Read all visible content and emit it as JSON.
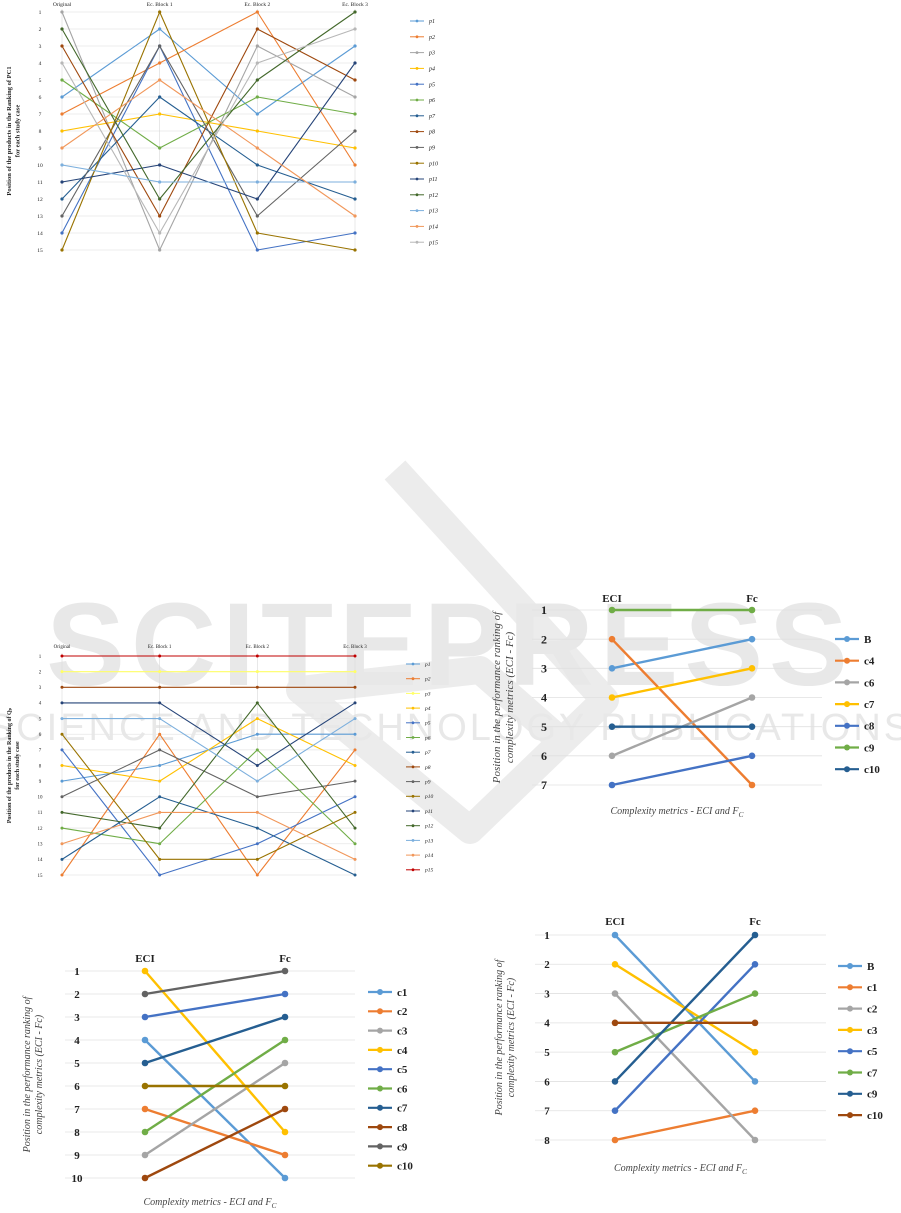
{
  "chart_data": [
    {
      "type": "line",
      "ylabel": "Position of the products in the Ranking of PC1 for each study case",
      "categories": [
        "Original",
        "Ec. Block 1",
        "Ec. Block 2",
        "Ec. Block 3"
      ],
      "yticks": [
        "1",
        "2",
        "3",
        "4",
        "5",
        "6",
        "7",
        "8",
        "9",
        "10",
        "11",
        "12",
        "13",
        "14",
        "15"
      ],
      "ylim": [
        1,
        15
      ],
      "y_inverted": true,
      "legend_position": "right",
      "series": [
        {
          "name": "p1",
          "color": "#5b9bd5",
          "values": [
            6,
            2,
            7,
            3
          ]
        },
        {
          "name": "p2",
          "color": "#ed7d31",
          "values": [
            7,
            4,
            1,
            10
          ]
        },
        {
          "name": "p3",
          "color": "#a5a5a5",
          "values": [
            1,
            15,
            3,
            6
          ]
        },
        {
          "name": "p4",
          "color": "#ffc000",
          "values": [
            8,
            7,
            8,
            9
          ]
        },
        {
          "name": "p5",
          "color": "#4472c4",
          "values": [
            14,
            3,
            15,
            14
          ]
        },
        {
          "name": "p6",
          "color": "#70ad47",
          "values": [
            5,
            9,
            6,
            7
          ]
        },
        {
          "name": "p7",
          "color": "#255e91",
          "values": [
            12,
            6,
            10,
            12
          ]
        },
        {
          "name": "p8",
          "color": "#9e480e",
          "values": [
            3,
            13,
            2,
            5
          ]
        },
        {
          "name": "p9",
          "color": "#636363",
          "values": [
            13,
            3,
            13,
            8
          ]
        },
        {
          "name": "p10",
          "color": "#997300",
          "values": [
            15,
            1,
            14,
            15
          ]
        },
        {
          "name": "p11",
          "color": "#264478",
          "values": [
            11,
            10,
            12,
            4
          ]
        },
        {
          "name": "p12",
          "color": "#43682b",
          "values": [
            2,
            12,
            5,
            1
          ]
        },
        {
          "name": "p13",
          "color": "#7cafdd",
          "values": [
            10,
            11,
            11,
            11
          ]
        },
        {
          "name": "p14",
          "color": "#f1975a",
          "values": [
            9,
            5,
            9,
            13
          ]
        },
        {
          "name": "p15",
          "color": "#b7b7b7",
          "values": [
            4,
            14,
            4,
            2
          ]
        }
      ]
    },
    {
      "type": "line",
      "ylabel": "Position of the products in the Ranking of Qₚ for each study case",
      "categories": [
        "Original",
        "Ec. Block 1",
        "Ec. Block 2",
        "Ec. Block 3"
      ],
      "yticks": [
        "1",
        "2",
        "3",
        "4",
        "5",
        "6",
        "7",
        "8",
        "9",
        "10",
        "11",
        "12",
        "13",
        "14",
        "15"
      ],
      "ylim": [
        1,
        15
      ],
      "y_inverted": true,
      "legend_position": "right",
      "series": [
        {
          "name": "p1",
          "color": "#5b9bd5",
          "values": [
            9,
            8,
            6,
            6
          ]
        },
        {
          "name": "p2",
          "color": "#ed7d31",
          "values": [
            15,
            6,
            15,
            7
          ]
        },
        {
          "name": "p3",
          "color": "#ffff66",
          "values": [
            2,
            2,
            2,
            2
          ]
        },
        {
          "name": "p4",
          "color": "#ffc000",
          "values": [
            8,
            9,
            5,
            8
          ]
        },
        {
          "name": "p5",
          "color": "#4472c4",
          "values": [
            7,
            15,
            13,
            10
          ]
        },
        {
          "name": "p6",
          "color": "#70ad47",
          "values": [
            12,
            13,
            7,
            13
          ]
        },
        {
          "name": "p7",
          "color": "#255e91",
          "values": [
            14,
            10,
            12,
            15
          ]
        },
        {
          "name": "p8",
          "color": "#9e480e",
          "values": [
            3,
            3,
            3,
            3
          ]
        },
        {
          "name": "p9",
          "color": "#636363",
          "values": [
            10,
            7,
            10,
            9
          ]
        },
        {
          "name": "p10",
          "color": "#997300",
          "values": [
            6,
            14,
            14,
            11
          ]
        },
        {
          "name": "p11",
          "color": "#264478",
          "values": [
            4,
            4,
            8,
            4
          ]
        },
        {
          "name": "p12",
          "color": "#43682b",
          "values": [
            11,
            12,
            4,
            12
          ]
        },
        {
          "name": "p13",
          "color": "#7cafdd",
          "values": [
            5,
            5,
            9,
            5
          ]
        },
        {
          "name": "p14",
          "color": "#f1975a",
          "values": [
            13,
            11,
            11,
            14
          ]
        },
        {
          "name": "p15",
          "color": "#c00000",
          "values": [
            1,
            1,
            1,
            1
          ]
        }
      ]
    },
    {
      "type": "line",
      "columns": [
        "ECI",
        "Fc"
      ],
      "ylabel": "Position in the performance ranking of complexity metrics (ECI - Fc)",
      "xlabel": "Complexity metrics - ECI and F",
      "xlabel_sub": "C",
      "yticks": [
        "1",
        "2",
        "3",
        "4",
        "5",
        "6",
        "7"
      ],
      "ylim": [
        1,
        7
      ],
      "y_inverted": true,
      "legend_position": "right",
      "series": [
        {
          "name": "B",
          "color": "#5b9bd5",
          "values": [
            3,
            2
          ]
        },
        {
          "name": "c4",
          "color": "#ed7d31",
          "values": [
            2,
            7
          ]
        },
        {
          "name": "c6",
          "color": "#a5a5a5",
          "values": [
            6,
            4
          ]
        },
        {
          "name": "c7",
          "color": "#ffc000",
          "values": [
            4,
            3
          ]
        },
        {
          "name": "c8",
          "color": "#4472c4",
          "values": [
            7,
            6
          ]
        },
        {
          "name": "c9",
          "color": "#70ad47",
          "values": [
            1,
            1
          ]
        },
        {
          "name": "c10",
          "color": "#255e91",
          "values": [
            5,
            5
          ]
        }
      ]
    },
    {
      "type": "line",
      "columns": [
        "ECI",
        "Fc"
      ],
      "ylabel": "Position in the performance ranking of complexity metrics (ECI - Fc)",
      "xlabel": "Complexity metrics - ECI and F",
      "xlabel_sub": "C",
      "yticks": [
        "1",
        "2",
        "3",
        "4",
        "5",
        "6",
        "7",
        "8",
        "9",
        "10"
      ],
      "ylim": [
        1,
        10
      ],
      "y_inverted": true,
      "legend_position": "right",
      "series": [
        {
          "name": "c1",
          "color": "#5b9bd5",
          "values": [
            4,
            10
          ]
        },
        {
          "name": "c2",
          "color": "#ed7d31",
          "values": [
            7,
            9
          ]
        },
        {
          "name": "c3",
          "color": "#a5a5a5",
          "values": [
            9,
            5
          ]
        },
        {
          "name": "c4",
          "color": "#ffc000",
          "values": [
            1,
            8
          ]
        },
        {
          "name": "c5",
          "color": "#4472c4",
          "values": [
            3,
            2
          ]
        },
        {
          "name": "c6",
          "color": "#70ad47",
          "values": [
            8,
            4
          ]
        },
        {
          "name": "c7",
          "color": "#255e91",
          "values": [
            5,
            3
          ]
        },
        {
          "name": "c8",
          "color": "#9e480e",
          "values": [
            10,
            7
          ]
        },
        {
          "name": "c9",
          "color": "#636363",
          "values": [
            2,
            1
          ]
        },
        {
          "name": "c10",
          "color": "#997300",
          "values": [
            6,
            6
          ]
        }
      ]
    },
    {
      "type": "line",
      "columns": [
        "ECI",
        "Fc"
      ],
      "ylabel": "Position in the performance ranking of complexity metrics (ECI - Fc)",
      "xlabel": "Complexity metrics - ECI and F",
      "xlabel_sub": "C",
      "yticks": [
        "1",
        "2",
        "3",
        "4",
        "5",
        "6",
        "7",
        "8"
      ],
      "ylim": [
        1,
        8
      ],
      "y_inverted": true,
      "legend_position": "right",
      "series": [
        {
          "name": "B",
          "color": "#5b9bd5",
          "values": [
            1,
            6
          ]
        },
        {
          "name": "c1",
          "color": "#ed7d31",
          "values": [
            8,
            7
          ]
        },
        {
          "name": "c2",
          "color": "#a5a5a5",
          "values": [
            3,
            8
          ]
        },
        {
          "name": "c3",
          "color": "#ffc000",
          "values": [
            2,
            5
          ]
        },
        {
          "name": "c5",
          "color": "#4472c4",
          "values": [
            7,
            2
          ]
        },
        {
          "name": "c7",
          "color": "#70ad47",
          "values": [
            5,
            3
          ]
        },
        {
          "name": "c9",
          "color": "#255e91",
          "values": [
            6,
            1
          ]
        },
        {
          "name": "c10",
          "color": "#9e480e",
          "values": [
            4,
            4
          ]
        }
      ]
    }
  ],
  "watermark": {
    "text": "SCITEPRESS",
    "subtext": "SCIENCE AND TECHNOLOGY PUBLICATIONS",
    "color": "#e6e6e6"
  }
}
